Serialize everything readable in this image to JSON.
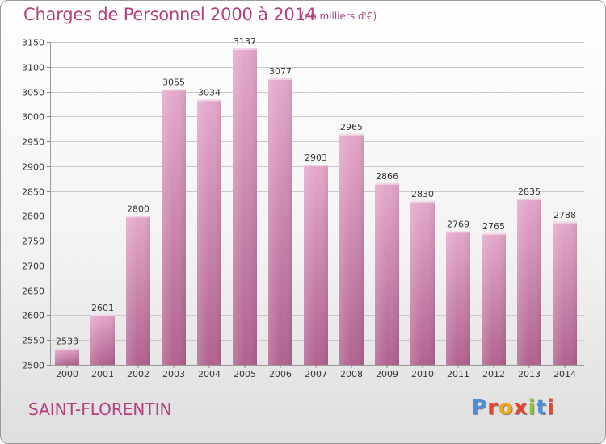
{
  "title": "Charges de Personnel 2000 à 2014",
  "subtitle": "(en milliers d'€)",
  "location": "SAINT-FLORENTIN",
  "logo": {
    "text": "Proxiti",
    "colors": [
      "#4a90d9",
      "#e8452c",
      "#f2a51e",
      "#e8452c",
      "#8cc63e",
      "#4a90d9",
      "#e8452c"
    ]
  },
  "colors": {
    "bar_top": "#e4a8cb",
    "bar_bottom": "#b0628f",
    "text_accent": "#b33f7f"
  },
  "chart_data": {
    "type": "bar",
    "categories": [
      "2000",
      "2001",
      "2002",
      "2003",
      "2004",
      "2005",
      "2006",
      "2007",
      "2008",
      "2009",
      "2010",
      "2011",
      "2012",
      "2013",
      "2014"
    ],
    "values": [
      2533,
      2601,
      2800,
      3055,
      3034,
      3137,
      3077,
      2903,
      2965,
      2866,
      2830,
      2769,
      2765,
      2835,
      2788
    ],
    "ylim": [
      2500,
      3150
    ],
    "yticks": [
      2500,
      2550,
      2600,
      2650,
      2700,
      2750,
      2800,
      2850,
      2900,
      2950,
      3000,
      3050,
      3100,
      3150
    ],
    "grid": true,
    "data_labels": true
  }
}
